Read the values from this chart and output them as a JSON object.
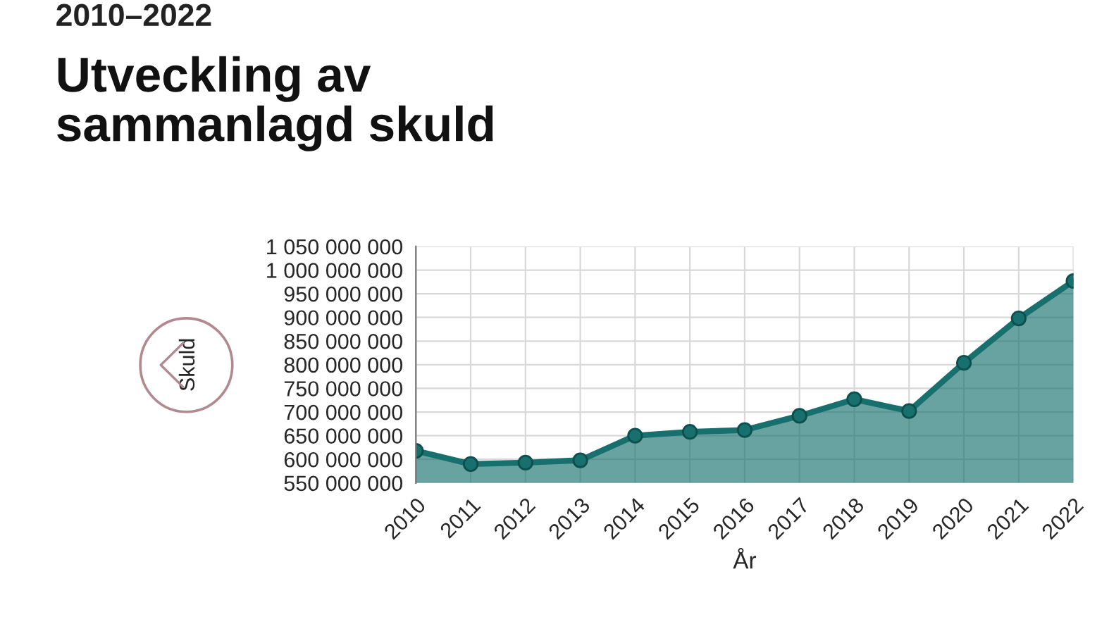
{
  "chart_data": {
    "type": "area",
    "subtitle": "2010–2022",
    "title": "Utveckling av\nsammanlagd skuld",
    "xlabel": "År",
    "ylabel": "Skuld",
    "categories": [
      "2010",
      "2011",
      "2012",
      "2013",
      "2014",
      "2015",
      "2016",
      "2017",
      "2018",
      "2019",
      "2020",
      "2021",
      "2022"
    ],
    "series": [
      {
        "color": "#17706e",
        "values": [
          618000000,
          590000000,
          593000000,
          598000000,
          650000000,
          658000000,
          662000000,
          692000000,
          727000000,
          702000000,
          804000000,
          898000000,
          977000000
        ]
      }
    ],
    "ylim": [
      550000000,
      1050000000
    ],
    "yticks": [
      {
        "value": 550000000,
        "label": "550 000 000"
      },
      {
        "value": 600000000,
        "label": "600 000 000"
      },
      {
        "value": 650000000,
        "label": "650 000 000"
      },
      {
        "value": 700000000,
        "label": "700 000 000"
      },
      {
        "value": 750000000,
        "label": "750 000 000"
      },
      {
        "value": 800000000,
        "label": "800 000 000"
      },
      {
        "value": 850000000,
        "label": "850 000 000"
      },
      {
        "value": 900000000,
        "label": "900 000 000"
      },
      {
        "value": 950000000,
        "label": "950 000 000"
      },
      {
        "value": 1000000000,
        "label": "1 000 000 000"
      },
      {
        "value": 1050000000,
        "label": "1 050 000 000"
      }
    ],
    "grid": true,
    "marker": "circle",
    "legend": false
  }
}
